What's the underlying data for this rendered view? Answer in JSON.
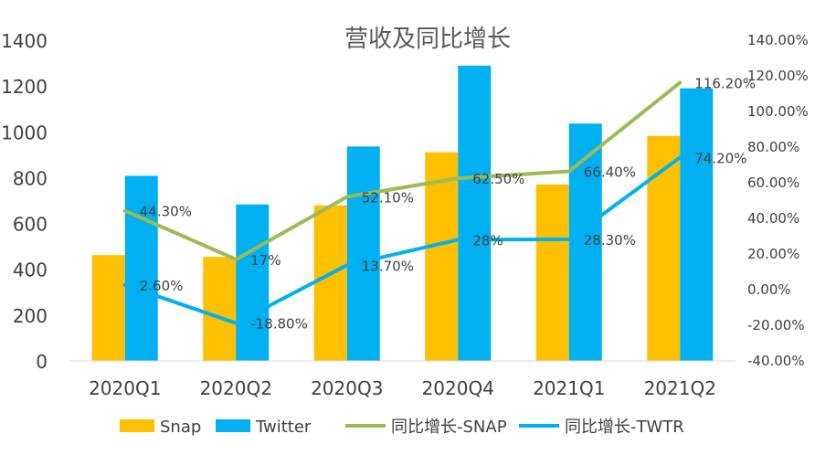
{
  "chart_data": {
    "type": "bar",
    "title": "营收及同比增长",
    "categories": [
      "2020Q1",
      "2020Q2",
      "2020Q3",
      "2020Q4",
      "2021Q1",
      "2021Q2"
    ],
    "y_left": {
      "min": 0,
      "max": 1400,
      "step": 200,
      "tick_labels": [
        "0",
        "200",
        "400",
        "600",
        "800",
        "1000",
        "1200",
        "1400"
      ]
    },
    "y_right": {
      "min": -40,
      "max": 140,
      "step": 20,
      "tick_labels": [
        "-40.00%",
        "-20.00%",
        "0.00%",
        "20.00%",
        "40.00%",
        "60.00%",
        "80.00%",
        "100.00%",
        "120.00%",
        "140.00%"
      ]
    },
    "bar_series": [
      {
        "name": "Snap",
        "color": "#FFC000",
        "values": [
          462,
          454,
          679,
          911,
          770,
          982
        ]
      },
      {
        "name": "Twitter",
        "color": "#00B0F0",
        "values": [
          808,
          683,
          936,
          1289,
          1036,
          1190
        ]
      }
    ],
    "line_series": [
      {
        "name": "同比增长-SNAP",
        "color": "#9BBB59",
        "axis": "right",
        "values": [
          44.3,
          17.0,
          52.1,
          62.5,
          66.4,
          116.2
        ],
        "labels": [
          "44.30%",
          "17%",
          "52.10%",
          "62.50%",
          "66.40%",
          "116.20%"
        ]
      },
      {
        "name": "同比增长-TWTR",
        "color": "#00B0F0",
        "axis": "right",
        "values": [
          2.6,
          -18.8,
          13.7,
          28.0,
          28.3,
          74.2
        ],
        "labels": [
          "2.60%",
          "-18.80%",
          "13.70%",
          "28%",
          "28.30%",
          "74.20%"
        ]
      }
    ],
    "legend": {
      "position": "bottom",
      "items": [
        "Snap",
        "Twitter",
        "同比增长-SNAP",
        "同比增长-TWTR"
      ]
    },
    "grid": false
  }
}
